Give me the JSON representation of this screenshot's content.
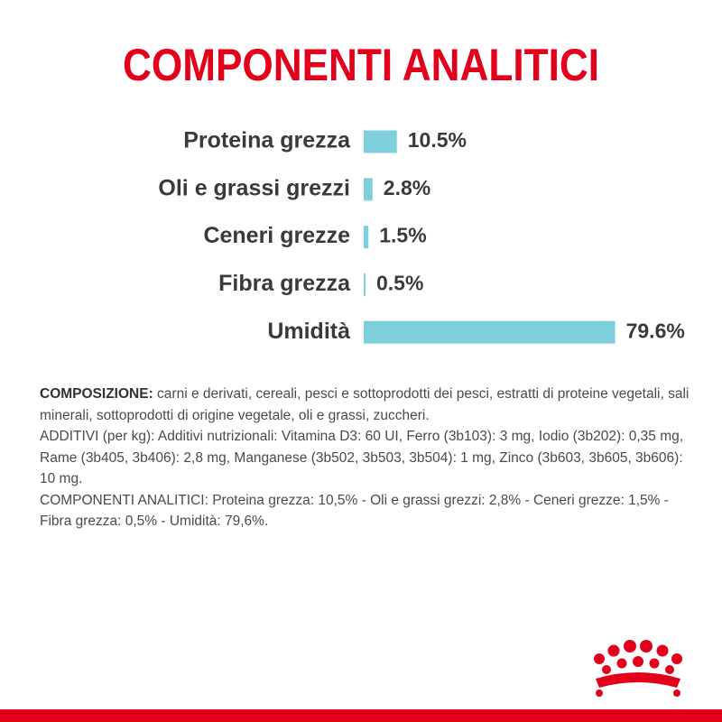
{
  "chart_data": {
    "type": "hbar",
    "title": "COMPONENTI ANALITICI",
    "categories": [
      "Proteina grezza",
      "Oli e grassi grezzi",
      "Ceneri grezze",
      "Fibra grezza",
      "Umidità"
    ],
    "values": [
      10.5,
      2.8,
      1.5,
      0.5,
      79.6
    ],
    "value_labels": [
      "10.5%",
      "2.8%",
      "1.5%",
      "0.5%",
      "79.6%"
    ],
    "color": "#7dcfdc",
    "xlim": [
      0,
      80
    ]
  },
  "composition": {
    "label": "COMPOSIZIONE:",
    "text": "carni e derivati, cereali, pesci e sottoprodotti dei pesci, estratti di proteine vegetali, sali minerali, sottoprodotti di origine vegetale, oli e grassi, zuccheri.",
    "additives": "ADDITIVI (per kg): Additivi nutrizionali: Vitamina D3: 60 UI, Ferro (3b103): 3 mg, Iodio (3b202): 0,35 mg, Rame (3b405, 3b406): 2,8 mg, Manganese (3b502, 3b503, 3b504): 1 mg, Zinco (3b603, 3b605, 3b606): 10 mg.",
    "analytic": "COMPONENTI ANALITICI: Proteina grezza: 10,5% - Oli e grassi grezzi: 2,8% - Ceneri grezze: 1,5% - Fibra grezza: 0,5% - Umidità: 79,6%."
  }
}
